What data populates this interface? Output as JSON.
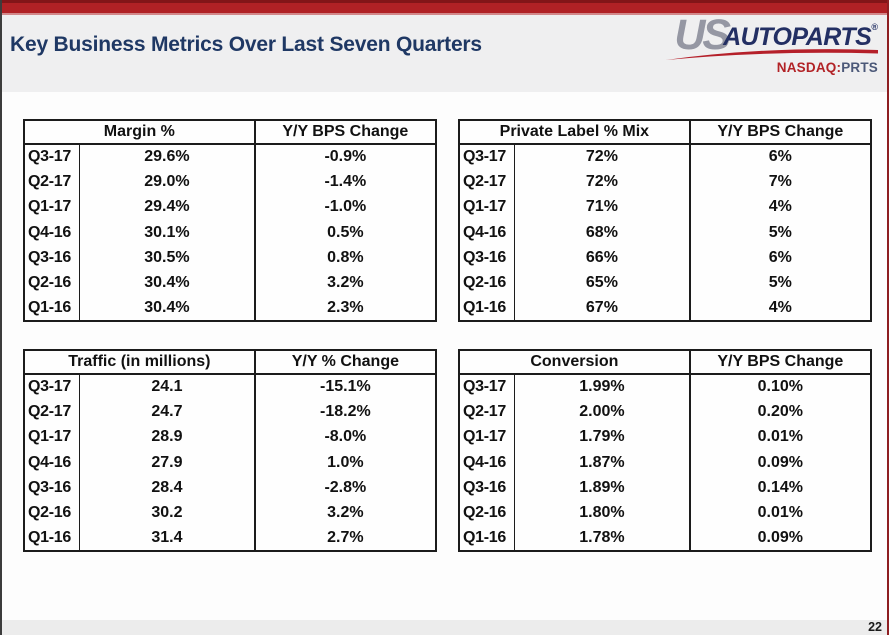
{
  "header": {
    "title": "Key Business Metrics Over Last Seven Quarters"
  },
  "logo": {
    "us": "US",
    "autoparts": "AUTOPARTS",
    "mark": "®",
    "exchange": "NASDAQ:",
    "symbol": "PRTS"
  },
  "footer": {
    "page_number": "22"
  },
  "colors": {
    "banner_red": "#b02125",
    "title_navy": "#1f3864",
    "logo_gray": "#9597a3",
    "logo_navy": "#232f63",
    "swoosh_red": "#b5202a",
    "ticker_red": "#b22226",
    "ticker_navy": "#4b5878",
    "table_border": "#1c1c1c",
    "header_band_bg": "#efeff0",
    "footer_band_bg": "#ececec"
  },
  "chart_data": [
    {
      "type": "table",
      "title": "Margin %",
      "change_label": "Y/Y BPS Change",
      "quarters": [
        "Q3-17",
        "Q2-17",
        "Q1-17",
        "Q4-16",
        "Q3-16",
        "Q2-16",
        "Q1-16"
      ],
      "values": [
        "29.6%",
        "29.0%",
        "29.4%",
        "30.1%",
        "30.5%",
        "30.4%",
        "30.4%"
      ],
      "changes": [
        "-0.9%",
        "-1.4%",
        "-1.0%",
        "0.5%",
        "0.8%",
        "3.2%",
        "2.3%"
      ]
    },
    {
      "type": "table",
      "title": "Private Label % Mix",
      "change_label": "Y/Y BPS Change",
      "quarters": [
        "Q3-17",
        "Q2-17",
        "Q1-17",
        "Q4-16",
        "Q3-16",
        "Q2-16",
        "Q1-16"
      ],
      "values": [
        "72%",
        "72%",
        "71%",
        "68%",
        "66%",
        "65%",
        "67%"
      ],
      "changes": [
        "6%",
        "7%",
        "4%",
        "5%",
        "6%",
        "5%",
        "4%"
      ]
    },
    {
      "type": "table",
      "title": "Traffic (in millions)",
      "change_label": "Y/Y % Change",
      "quarters": [
        "Q3-17",
        "Q2-17",
        "Q1-17",
        "Q4-16",
        "Q3-16",
        "Q2-16",
        "Q1-16"
      ],
      "values": [
        "24.1",
        "24.7",
        "28.9",
        "27.9",
        "28.4",
        "30.2",
        "31.4"
      ],
      "changes": [
        "-15.1%",
        "-18.2%",
        "-8.0%",
        "1.0%",
        "-2.8%",
        "3.2%",
        "2.7%"
      ]
    },
    {
      "type": "table",
      "title": "Conversion",
      "change_label": "Y/Y BPS Change",
      "quarters": [
        "Q3-17",
        "Q2-17",
        "Q1-17",
        "Q4-16",
        "Q3-16",
        "Q2-16",
        "Q1-16"
      ],
      "values": [
        "1.99%",
        "2.00%",
        "1.79%",
        "1.87%",
        "1.89%",
        "1.80%",
        "1.78%"
      ],
      "changes": [
        "0.10%",
        "0.20%",
        "0.01%",
        "0.09%",
        "0.14%",
        "0.01%",
        "0.09%"
      ]
    }
  ]
}
